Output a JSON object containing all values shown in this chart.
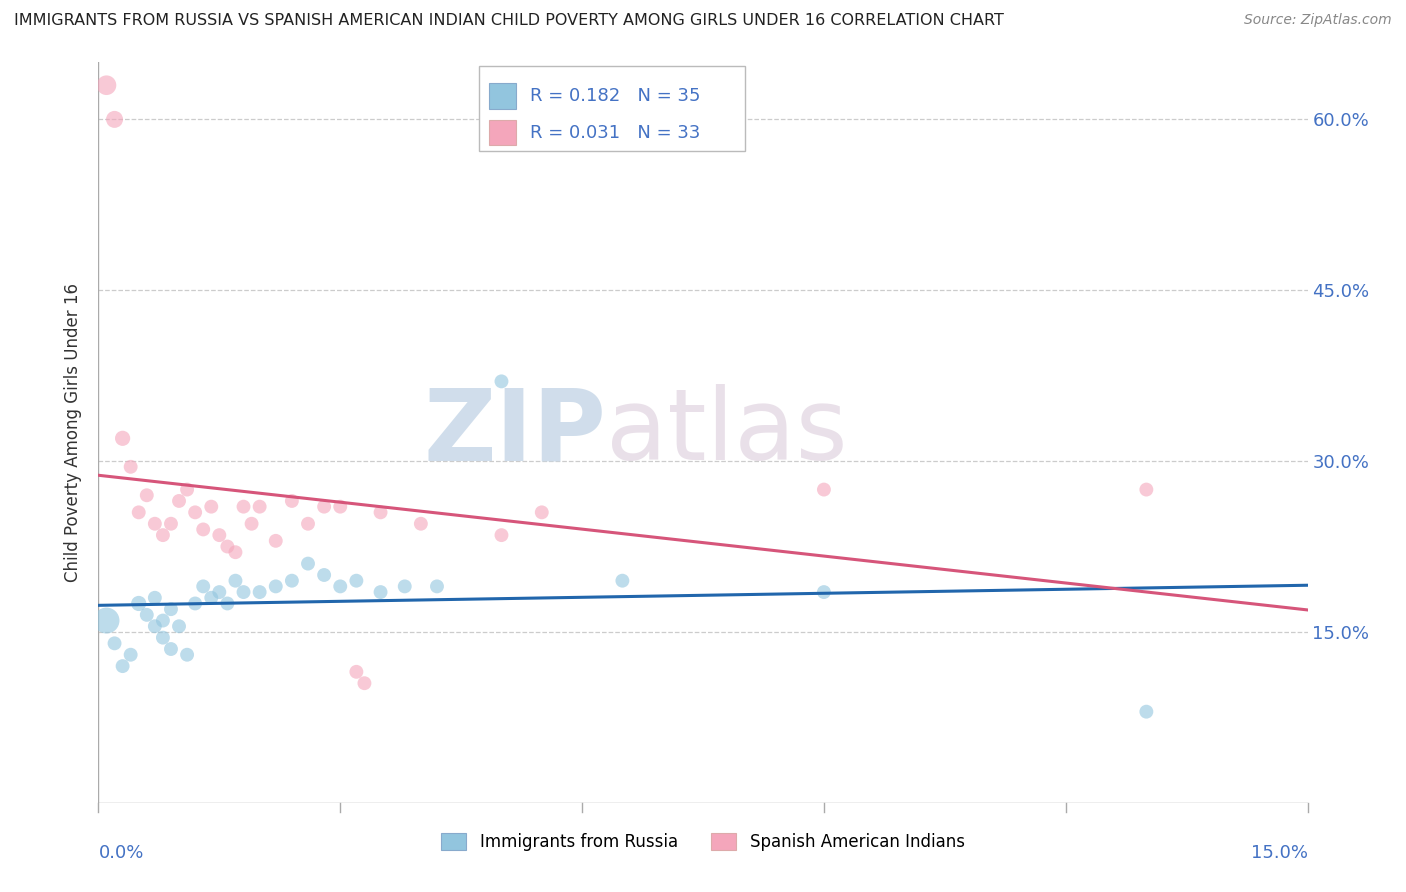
{
  "title": "IMMIGRANTS FROM RUSSIA VS SPANISH AMERICAN INDIAN CHILD POVERTY AMONG GIRLS UNDER 16 CORRELATION CHART",
  "source": "Source: ZipAtlas.com",
  "ylabel": "Child Poverty Among Girls Under 16",
  "watermark_zip": "ZIP",
  "watermark_atlas": "atlas",
  "legend_label1": "Immigrants from Russia",
  "legend_label2": "Spanish American Indians",
  "color_blue": "#92c5de",
  "color_pink": "#f4a6bb",
  "color_blue_line": "#2166ac",
  "color_pink_line": "#d6557a",
  "xlim": [
    0.0,
    0.15
  ],
  "ylim": [
    0.0,
    0.65
  ],
  "yticks": [
    0.15,
    0.3,
    0.45,
    0.6
  ],
  "ytick_labels": [
    "15.0%",
    "30.0%",
    "45.0%",
    "60.0%"
  ],
  "xticks": [
    0.0,
    0.03,
    0.06,
    0.09,
    0.12,
    0.15
  ],
  "blue_points": [
    [
      0.001,
      0.16
    ],
    [
      0.002,
      0.14
    ],
    [
      0.003,
      0.12
    ],
    [
      0.004,
      0.13
    ],
    [
      0.005,
      0.175
    ],
    [
      0.006,
      0.165
    ],
    [
      0.007,
      0.155
    ],
    [
      0.007,
      0.18
    ],
    [
      0.008,
      0.16
    ],
    [
      0.008,
      0.145
    ],
    [
      0.009,
      0.17
    ],
    [
      0.009,
      0.135
    ],
    [
      0.01,
      0.155
    ],
    [
      0.011,
      0.13
    ],
    [
      0.012,
      0.175
    ],
    [
      0.013,
      0.19
    ],
    [
      0.014,
      0.18
    ],
    [
      0.015,
      0.185
    ],
    [
      0.016,
      0.175
    ],
    [
      0.017,
      0.195
    ],
    [
      0.018,
      0.185
    ],
    [
      0.02,
      0.185
    ],
    [
      0.022,
      0.19
    ],
    [
      0.024,
      0.195
    ],
    [
      0.026,
      0.21
    ],
    [
      0.028,
      0.2
    ],
    [
      0.03,
      0.19
    ],
    [
      0.032,
      0.195
    ],
    [
      0.035,
      0.185
    ],
    [
      0.038,
      0.19
    ],
    [
      0.042,
      0.19
    ],
    [
      0.05,
      0.37
    ],
    [
      0.065,
      0.195
    ],
    [
      0.09,
      0.185
    ],
    [
      0.13,
      0.08
    ]
  ],
  "blue_sizes": [
    350,
    100,
    100,
    100,
    120,
    100,
    100,
    100,
    100,
    100,
    100,
    100,
    100,
    100,
    100,
    100,
    100,
    100,
    100,
    100,
    100,
    100,
    100,
    100,
    100,
    100,
    100,
    100,
    100,
    100,
    100,
    100,
    100,
    100,
    100
  ],
  "pink_points": [
    [
      0.001,
      0.63
    ],
    [
      0.002,
      0.6
    ],
    [
      0.003,
      0.32
    ],
    [
      0.004,
      0.295
    ],
    [
      0.005,
      0.255
    ],
    [
      0.006,
      0.27
    ],
    [
      0.007,
      0.245
    ],
    [
      0.008,
      0.235
    ],
    [
      0.009,
      0.245
    ],
    [
      0.01,
      0.265
    ],
    [
      0.011,
      0.275
    ],
    [
      0.012,
      0.255
    ],
    [
      0.013,
      0.24
    ],
    [
      0.014,
      0.26
    ],
    [
      0.015,
      0.235
    ],
    [
      0.016,
      0.225
    ],
    [
      0.017,
      0.22
    ],
    [
      0.018,
      0.26
    ],
    [
      0.019,
      0.245
    ],
    [
      0.02,
      0.26
    ],
    [
      0.022,
      0.23
    ],
    [
      0.024,
      0.265
    ],
    [
      0.026,
      0.245
    ],
    [
      0.028,
      0.26
    ],
    [
      0.03,
      0.26
    ],
    [
      0.032,
      0.115
    ],
    [
      0.033,
      0.105
    ],
    [
      0.035,
      0.255
    ],
    [
      0.04,
      0.245
    ],
    [
      0.05,
      0.235
    ],
    [
      0.055,
      0.255
    ],
    [
      0.09,
      0.275
    ],
    [
      0.13,
      0.275
    ]
  ],
  "pink_sizes": [
    200,
    150,
    120,
    100,
    100,
    100,
    100,
    100,
    100,
    100,
    100,
    100,
    100,
    100,
    100,
    100,
    100,
    100,
    100,
    100,
    100,
    100,
    100,
    100,
    100,
    100,
    100,
    100,
    100,
    100,
    100,
    100,
    100
  ]
}
